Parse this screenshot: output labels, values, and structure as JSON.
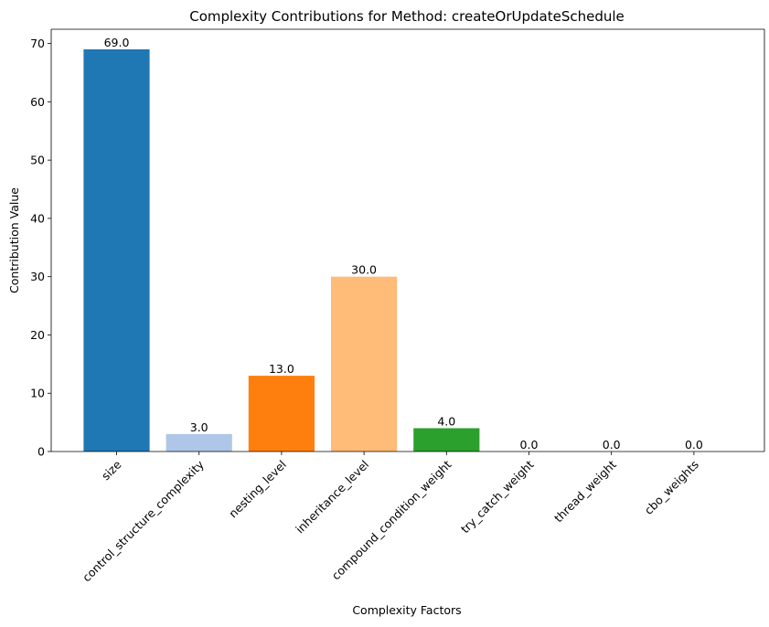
{
  "chart_data": {
    "type": "bar",
    "title": "Complexity Contributions for Method: createOrUpdateSchedule",
    "xlabel": "Complexity Factors",
    "ylabel": "Contribution Value",
    "categories": [
      "size",
      "control_structure_complexity",
      "nesting_level",
      "inheritance_level",
      "compound_condition_weight",
      "try_catch_weight",
      "thread_weight",
      "cbo_weights"
    ],
    "values": [
      69.0,
      3.0,
      13.0,
      30.0,
      4.0,
      0.0,
      0.0,
      0.0
    ],
    "value_labels": [
      "69.0",
      "3.0",
      "13.0",
      "30.0",
      "4.0",
      "0.0",
      "0.0",
      "0.0"
    ],
    "colors": [
      "#1f77b4",
      "#aec7e8",
      "#ff7f0e",
      "#ffbb78",
      "#2ca02c",
      "#98df8a",
      "#d62728",
      "#ff9896"
    ],
    "yticks": [
      0,
      10,
      20,
      30,
      40,
      50,
      60,
      70
    ],
    "ylim": [
      0,
      72.45
    ],
    "grid": false,
    "legend": "none"
  }
}
